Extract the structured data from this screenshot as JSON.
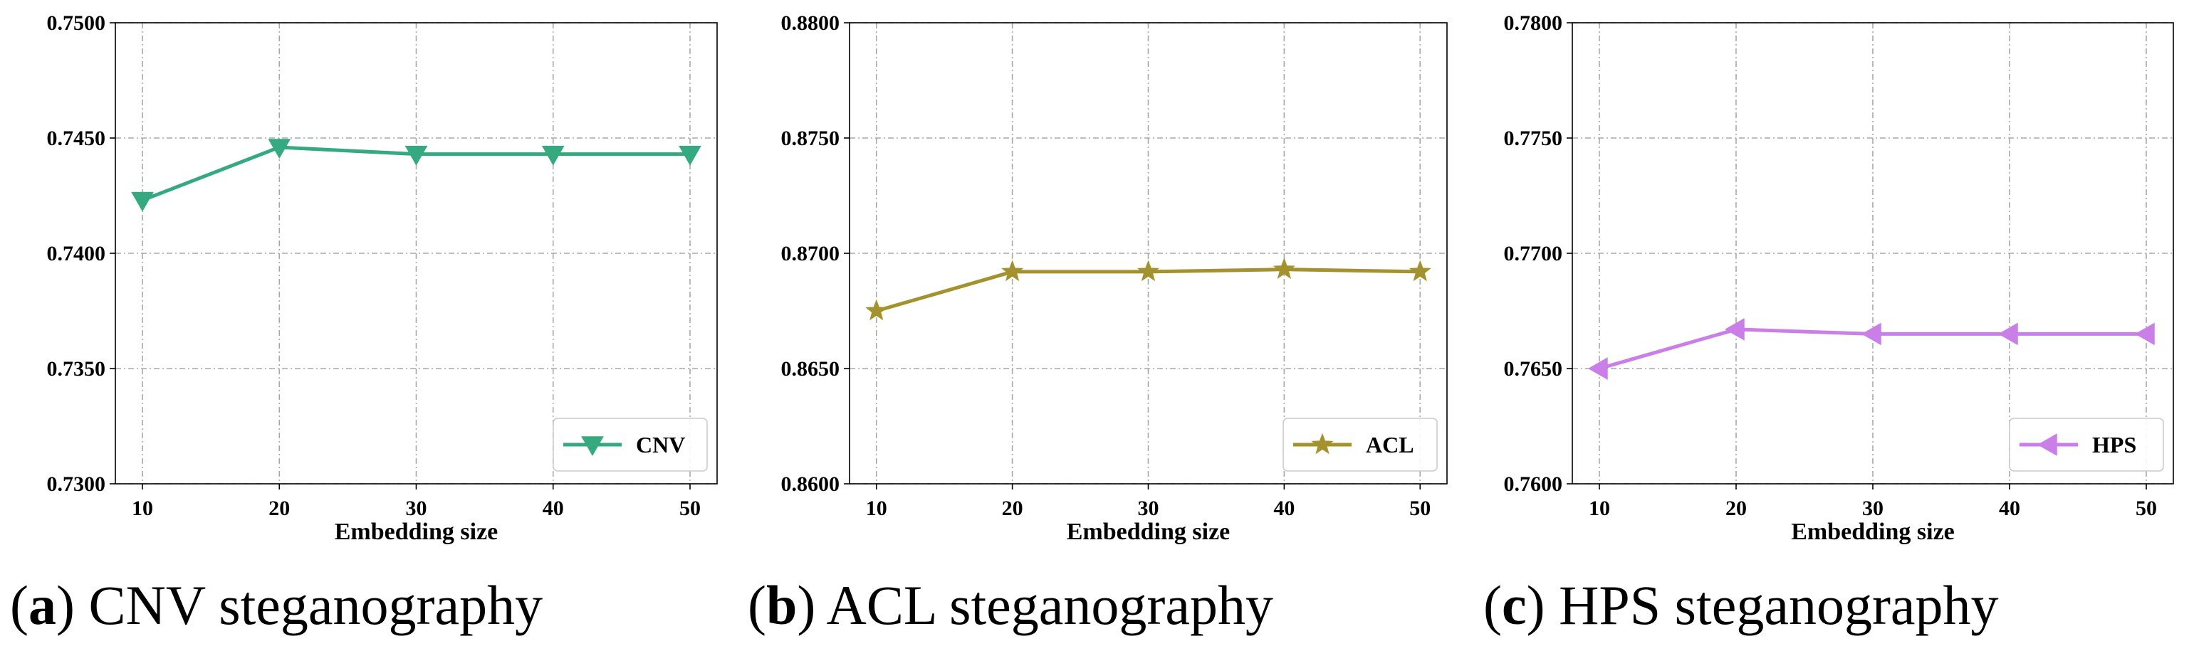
{
  "chart_data": [
    {
      "type": "line",
      "panel_letter": "a",
      "caption": "CNV steganography",
      "title": "",
      "xlabel": "Embedding size",
      "ylabel": "",
      "x": [
        10,
        20,
        30,
        40,
        50
      ],
      "series": [
        {
          "name": "CNV",
          "values": [
            0.7423,
            0.7446,
            0.7443,
            0.7443,
            0.7443
          ],
          "color": "#35a97f",
          "marker": "triangle-down"
        }
      ],
      "ylim": [
        0.73,
        0.75
      ],
      "yticks": [
        "0.7300",
        "0.7350",
        "0.7400",
        "0.7450",
        "0.7500"
      ],
      "xticks": [
        "10",
        "20",
        "30",
        "40",
        "50"
      ],
      "grid": true,
      "legend_position": "bottom-right"
    },
    {
      "type": "line",
      "panel_letter": "b",
      "caption": "ACL steganography",
      "title": "",
      "xlabel": "Embedding size",
      "ylabel": "",
      "x": [
        10,
        20,
        30,
        40,
        50
      ],
      "series": [
        {
          "name": "ACL",
          "values": [
            0.8675,
            0.8692,
            0.8692,
            0.8693,
            0.8692
          ],
          "color": "#a3922d",
          "marker": "star"
        }
      ],
      "ylim": [
        0.86,
        0.88
      ],
      "yticks": [
        "0.8600",
        "0.8650",
        "0.8700",
        "0.8750",
        "0.8800"
      ],
      "xticks": [
        "10",
        "20",
        "30",
        "40",
        "50"
      ],
      "grid": true,
      "legend_position": "bottom-right"
    },
    {
      "type": "line",
      "panel_letter": "c",
      "caption": "HPS steganography",
      "title": "",
      "xlabel": "Embedding size",
      "ylabel": "",
      "x": [
        10,
        20,
        30,
        40,
        50
      ],
      "series": [
        {
          "name": "HPS",
          "values": [
            0.765,
            0.7667,
            0.7665,
            0.7665,
            0.7665
          ],
          "color": "#c97ee8",
          "marker": "triangle-left"
        }
      ],
      "ylim": [
        0.76,
        0.78
      ],
      "yticks": [
        "0.7600",
        "0.7650",
        "0.7700",
        "0.7750",
        "0.7800"
      ],
      "xticks": [
        "10",
        "20",
        "30",
        "40",
        "50"
      ],
      "grid": true,
      "legend_position": "bottom-right"
    }
  ]
}
